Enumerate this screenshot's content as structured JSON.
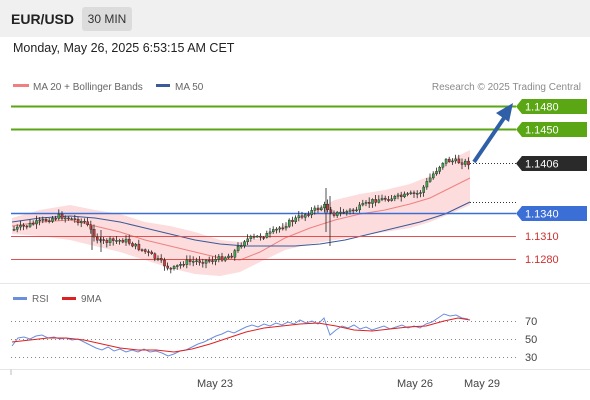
{
  "header": {
    "pair": "EUR/USD",
    "timeframe": "30 MIN"
  },
  "timestamp": "Monday, May 26, 2025 6:53:15 AM CET",
  "legend": {
    "items": [
      {
        "label": "MA 20 + Bollinger Bands",
        "color": "#f08080"
      },
      {
        "label": "MA 50",
        "color": "#3a5a9a"
      }
    ]
  },
  "credit": "Research © 2025 Trading Central",
  "levels": {
    "l1480": "1.1480",
    "l1450": "1.1450",
    "last": "1.1406",
    "l1340": "1.1340",
    "l1310": "1.1310",
    "l1280": "1.1280"
  },
  "colors": {
    "resistance": "#5aa614",
    "support": "#3c6fd6",
    "pivot": "#e05050",
    "last": "#2a2a2a",
    "arrow": "#2f5fa6",
    "rsi": "#6a8ee0",
    "rsi_ma": "#e02020"
  },
  "rsi": {
    "legend": [
      {
        "label": "RSI",
        "color": "#6a8ee0"
      },
      {
        "label": "9MA",
        "color": "#e02020"
      }
    ],
    "ticks": [
      "70",
      "50",
      "30"
    ]
  },
  "xaxis": {
    "labels": [
      "May 23",
      "May 26",
      "May 29"
    ]
  }
}
